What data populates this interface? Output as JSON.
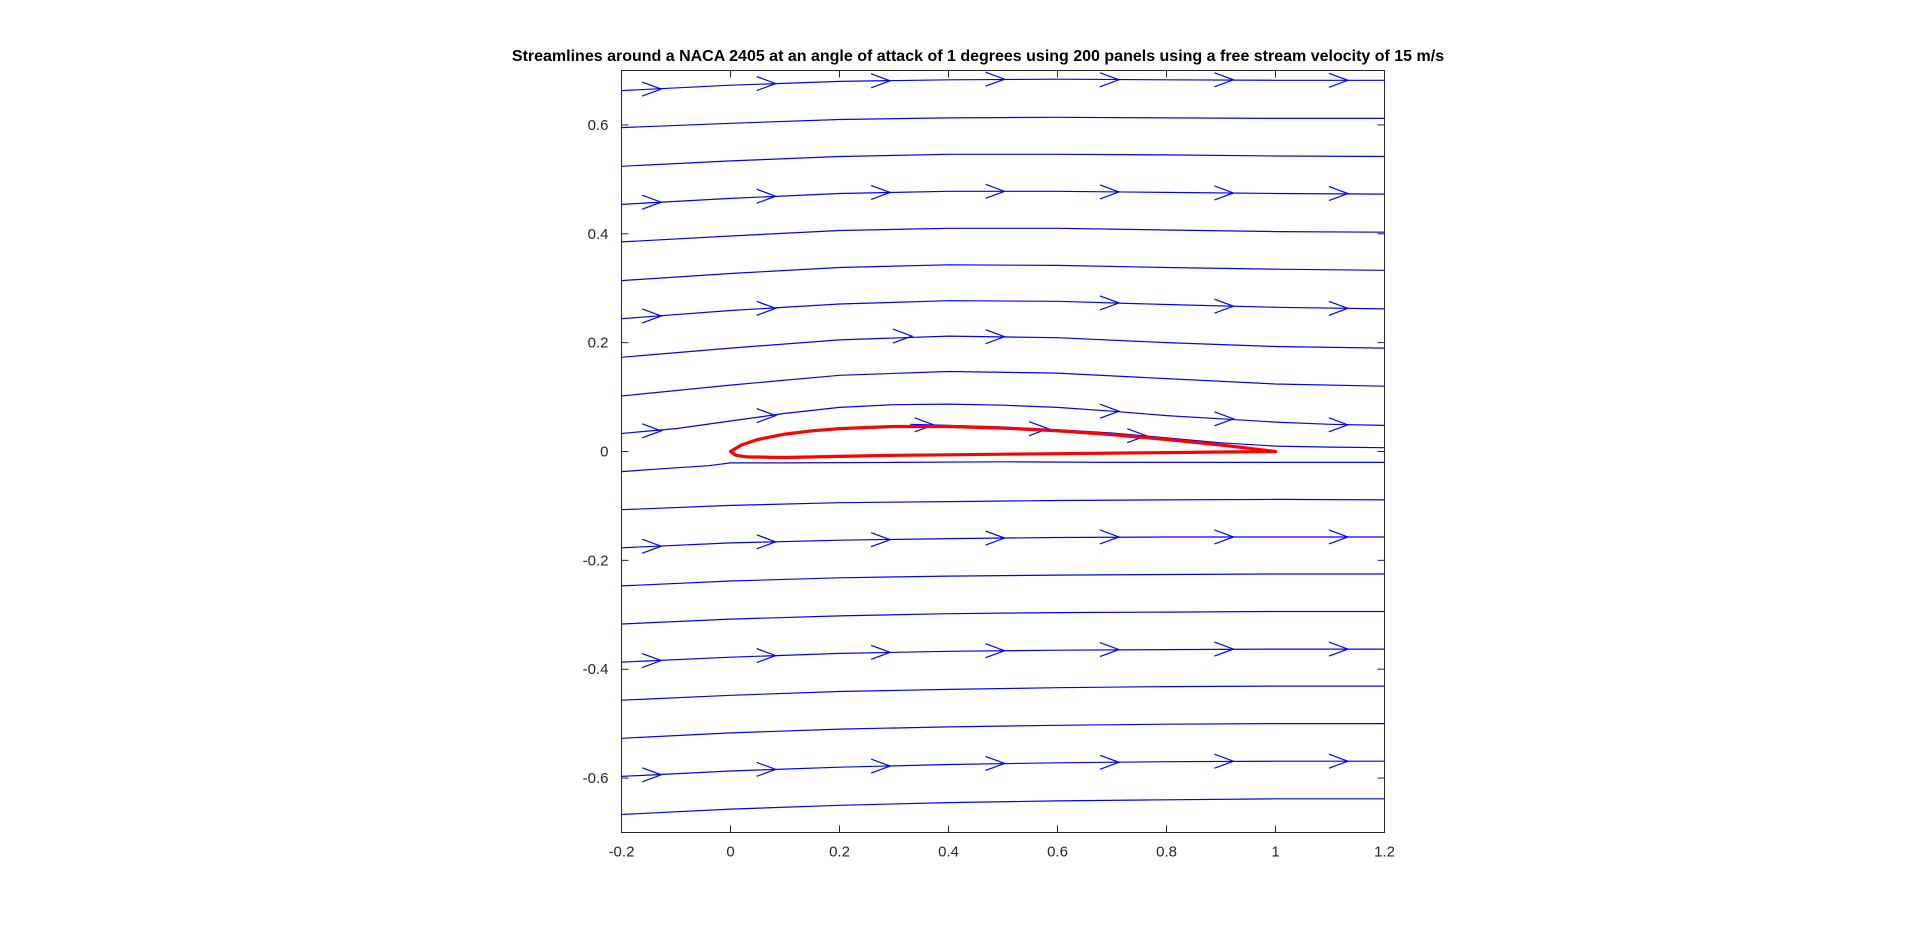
{
  "chart_data": {
    "type": "line",
    "title": "Streamlines around a NACA 2405 at an angle of attack of 1 degrees using 200 panels using a free stream velocity of 15 m/s",
    "xlabel": "",
    "ylabel": "",
    "xlim": [
      -0.2,
      1.2
    ],
    "ylim": [
      -0.7,
      0.7
    ],
    "x_ticks": [
      -0.2,
      0,
      0.2,
      0.4,
      0.6,
      0.8,
      1,
      1.2
    ],
    "y_ticks": [
      -0.6,
      -0.4,
      -0.2,
      0,
      0.2,
      0.4,
      0.6
    ],
    "x_tick_labels": [
      "-0.2",
      "0",
      "0.2",
      "0.4",
      "0.6",
      "0.8",
      "1",
      "1.2"
    ],
    "y_tick_labels": [
      "-0.6",
      "-0.4",
      "-0.2",
      "0",
      "0.2",
      "0.4",
      "0.6"
    ],
    "grid": false,
    "colors": {
      "streamline": "#0000ff",
      "airfoil": "#ff0000",
      "axes": "#262626"
    },
    "series": [
      {
        "kind": "streamline",
        "points": [
          [
            -0.2,
            0.663
          ],
          [
            0,
            0.673
          ],
          [
            0.2,
            0.68
          ],
          [
            0.4,
            0.683
          ],
          [
            0.6,
            0.684
          ],
          [
            0.8,
            0.683
          ],
          [
            1,
            0.682
          ],
          [
            1.2,
            0.682
          ]
        ]
      },
      {
        "kind": "streamline",
        "points": [
          [
            -0.2,
            0.595
          ],
          [
            0,
            0.603
          ],
          [
            0.2,
            0.61
          ],
          [
            0.4,
            0.613
          ],
          [
            0.6,
            0.614
          ],
          [
            0.8,
            0.613
          ],
          [
            1,
            0.612
          ],
          [
            1.2,
            0.612
          ]
        ]
      },
      {
        "kind": "streamline",
        "points": [
          [
            -0.2,
            0.524
          ],
          [
            0,
            0.534
          ],
          [
            0.2,
            0.542
          ],
          [
            0.4,
            0.546
          ],
          [
            0.6,
            0.546
          ],
          [
            0.8,
            0.545
          ],
          [
            1,
            0.543
          ],
          [
            1.2,
            0.542
          ]
        ]
      },
      {
        "kind": "streamline",
        "points": [
          [
            -0.2,
            0.454
          ],
          [
            0,
            0.465
          ],
          [
            0.2,
            0.474
          ],
          [
            0.4,
            0.478
          ],
          [
            0.6,
            0.478
          ],
          [
            0.8,
            0.476
          ],
          [
            1,
            0.474
          ],
          [
            1.2,
            0.473
          ]
        ]
      },
      {
        "kind": "streamline",
        "points": [
          [
            -0.2,
            0.385
          ],
          [
            0,
            0.396
          ],
          [
            0.2,
            0.406
          ],
          [
            0.4,
            0.41
          ],
          [
            0.6,
            0.41
          ],
          [
            0.8,
            0.407
          ],
          [
            1,
            0.404
          ],
          [
            1.2,
            0.403
          ]
        ]
      },
      {
        "kind": "streamline",
        "points": [
          [
            -0.2,
            0.314
          ],
          [
            0,
            0.327
          ],
          [
            0.2,
            0.338
          ],
          [
            0.4,
            0.343
          ],
          [
            0.6,
            0.342
          ],
          [
            0.8,
            0.338
          ],
          [
            1,
            0.335
          ],
          [
            1.2,
            0.333
          ]
        ]
      },
      {
        "kind": "streamline",
        "points": [
          [
            -0.2,
            0.244
          ],
          [
            0,
            0.259
          ],
          [
            0.2,
            0.271
          ],
          [
            0.4,
            0.277
          ],
          [
            0.6,
            0.276
          ],
          [
            0.8,
            0.27
          ],
          [
            1,
            0.265
          ],
          [
            1.2,
            0.262
          ]
        ]
      },
      {
        "kind": "streamline",
        "points": [
          [
            -0.2,
            0.173
          ],
          [
            0,
            0.19
          ],
          [
            0.2,
            0.205
          ],
          [
            0.4,
            0.212
          ],
          [
            0.6,
            0.209
          ],
          [
            0.8,
            0.2
          ],
          [
            1,
            0.193
          ],
          [
            1.2,
            0.19
          ]
        ]
      },
      {
        "kind": "streamline",
        "points": [
          [
            -0.2,
            0.102
          ],
          [
            0,
            0.122
          ],
          [
            0.2,
            0.14
          ],
          [
            0.4,
            0.147
          ],
          [
            0.6,
            0.144
          ],
          [
            0.8,
            0.134
          ],
          [
            1,
            0.124
          ],
          [
            1.2,
            0.12
          ]
        ]
      },
      {
        "kind": "streamline",
        "points": [
          [
            -0.2,
            0.033
          ],
          [
            -0.1,
            0.042
          ],
          [
            0,
            0.056
          ],
          [
            0.1,
            0.07
          ],
          [
            0.2,
            0.081
          ],
          [
            0.3,
            0.086
          ],
          [
            0.4,
            0.087
          ],
          [
            0.5,
            0.085
          ],
          [
            0.6,
            0.081
          ],
          [
            0.7,
            0.074
          ],
          [
            0.8,
            0.066
          ],
          [
            0.9,
            0.06
          ],
          [
            1,
            0.054
          ],
          [
            1.1,
            0.05
          ],
          [
            1.2,
            0.048
          ]
        ]
      },
      {
        "kind": "streamline",
        "points": [
          [
            0.33,
            0.05
          ],
          [
            0.4,
            0.048
          ],
          [
            0.5,
            0.045
          ],
          [
            0.6,
            0.04
          ],
          [
            0.7,
            0.034
          ],
          [
            0.8,
            0.025
          ],
          [
            0.9,
            0.016
          ],
          [
            1,
            0.01
          ],
          [
            1.1,
            0.008
          ],
          [
            1.2,
            0.007
          ]
        ]
      },
      {
        "kind": "streamline",
        "points": [
          [
            -0.2,
            -0.037
          ],
          [
            -0.1,
            -0.03
          ],
          [
            -0.04,
            -0.026
          ],
          [
            0,
            -0.021
          ],
          [
            0.1,
            -0.021
          ],
          [
            0.3,
            -0.02
          ],
          [
            0.5,
            -0.019
          ],
          [
            0.7,
            -0.02
          ],
          [
            0.9,
            -0.02
          ],
          [
            1.2,
            -0.02
          ]
        ]
      },
      {
        "kind": "streamline",
        "points": [
          [
            -0.2,
            -0.107
          ],
          [
            0,
            -0.099
          ],
          [
            0.2,
            -0.094
          ],
          [
            0.4,
            -0.092
          ],
          [
            0.6,
            -0.09
          ],
          [
            0.8,
            -0.089
          ],
          [
            1,
            -0.088
          ],
          [
            1.2,
            -0.089
          ]
        ]
      },
      {
        "kind": "streamline",
        "points": [
          [
            -0.2,
            -0.177
          ],
          [
            0,
            -0.168
          ],
          [
            0.2,
            -0.163
          ],
          [
            0.4,
            -0.16
          ],
          [
            0.6,
            -0.158
          ],
          [
            0.8,
            -0.157
          ],
          [
            1,
            -0.157
          ],
          [
            1.2,
            -0.157
          ]
        ]
      },
      {
        "kind": "streamline",
        "points": [
          [
            -0.2,
            -0.247
          ],
          [
            0,
            -0.238
          ],
          [
            0.2,
            -0.232
          ],
          [
            0.4,
            -0.229
          ],
          [
            0.6,
            -0.227
          ],
          [
            0.8,
            -0.226
          ],
          [
            1,
            -0.225
          ],
          [
            1.2,
            -0.225
          ]
        ]
      },
      {
        "kind": "streamline",
        "points": [
          [
            -0.2,
            -0.317
          ],
          [
            0,
            -0.308
          ],
          [
            0.2,
            -0.302
          ],
          [
            0.4,
            -0.298
          ],
          [
            0.6,
            -0.296
          ],
          [
            0.8,
            -0.295
          ],
          [
            1,
            -0.294
          ],
          [
            1.2,
            -0.294
          ]
        ]
      },
      {
        "kind": "streamline",
        "points": [
          [
            -0.2,
            -0.387
          ],
          [
            0,
            -0.378
          ],
          [
            0.2,
            -0.371
          ],
          [
            0.4,
            -0.367
          ],
          [
            0.6,
            -0.365
          ],
          [
            0.8,
            -0.364
          ],
          [
            1,
            -0.363
          ],
          [
            1.2,
            -0.363
          ]
        ]
      },
      {
        "kind": "streamline",
        "points": [
          [
            -0.2,
            -0.457
          ],
          [
            0,
            -0.448
          ],
          [
            0.2,
            -0.441
          ],
          [
            0.4,
            -0.437
          ],
          [
            0.6,
            -0.434
          ],
          [
            0.8,
            -0.432
          ],
          [
            1,
            -0.431
          ],
          [
            1.2,
            -0.431
          ]
        ]
      },
      {
        "kind": "streamline",
        "points": [
          [
            -0.2,
            -0.527
          ],
          [
            0,
            -0.517
          ],
          [
            0.2,
            -0.51
          ],
          [
            0.4,
            -0.506
          ],
          [
            0.6,
            -0.503
          ],
          [
            0.8,
            -0.501
          ],
          [
            1,
            -0.5
          ],
          [
            1.2,
            -0.5
          ]
        ]
      },
      {
        "kind": "streamline",
        "points": [
          [
            -0.2,
            -0.597
          ],
          [
            0,
            -0.587
          ],
          [
            0.2,
            -0.58
          ],
          [
            0.4,
            -0.575
          ],
          [
            0.6,
            -0.572
          ],
          [
            0.8,
            -0.57
          ],
          [
            1,
            -0.569
          ],
          [
            1.2,
            -0.569
          ]
        ]
      },
      {
        "kind": "streamline",
        "points": [
          [
            -0.2,
            -0.667
          ],
          [
            0,
            -0.657
          ],
          [
            0.2,
            -0.65
          ],
          [
            0.4,
            -0.645
          ],
          [
            0.6,
            -0.642
          ],
          [
            0.8,
            -0.64
          ],
          [
            1,
            -0.638
          ],
          [
            1.2,
            -0.638
          ]
        ]
      }
    ],
    "arrows": [
      [
        -0.14,
        0.666
      ],
      [
        0.07,
        0.676
      ],
      [
        0.28,
        0.681
      ],
      [
        0.49,
        0.684
      ],
      [
        0.7,
        0.683
      ],
      [
        0.91,
        0.683
      ],
      [
        1.12,
        0.682
      ],
      [
        -0.14,
        0.458
      ],
      [
        0.07,
        0.469
      ],
      [
        0.28,
        0.476
      ],
      [
        0.49,
        0.478
      ],
      [
        0.7,
        0.477
      ],
      [
        0.91,
        0.475
      ],
      [
        1.12,
        0.474
      ],
      [
        -0.14,
        0.249
      ],
      [
        0.07,
        0.263
      ],
      [
        0.7,
        0.273
      ],
      [
        0.91,
        0.267
      ],
      [
        1.12,
        0.263
      ],
      [
        0.32,
        0.212
      ],
      [
        0.49,
        0.211
      ],
      [
        -0.14,
        0.038
      ],
      [
        0.07,
        0.066
      ],
      [
        0.7,
        0.074
      ],
      [
        0.91,
        0.06
      ],
      [
        1.12,
        0.049
      ],
      [
        0.36,
        0.049
      ],
      [
        0.57,
        0.042
      ],
      [
        0.75,
        0.029
      ],
      [
        -0.14,
        -0.174
      ],
      [
        0.07,
        -0.166
      ],
      [
        0.28,
        -0.162
      ],
      [
        0.49,
        -0.159
      ],
      [
        0.7,
        -0.157
      ],
      [
        0.91,
        -0.157
      ],
      [
        1.12,
        -0.157
      ],
      [
        -0.14,
        -0.384
      ],
      [
        0.07,
        -0.375
      ],
      [
        0.28,
        -0.369
      ],
      [
        0.49,
        -0.366
      ],
      [
        0.7,
        -0.364
      ],
      [
        0.91,
        -0.363
      ],
      [
        1.12,
        -0.363
      ],
      [
        -0.14,
        -0.594
      ],
      [
        0.07,
        -0.584
      ],
      [
        0.28,
        -0.578
      ],
      [
        0.49,
        -0.573
      ],
      [
        0.7,
        -0.571
      ],
      [
        0.91,
        -0.569
      ],
      [
        1.12,
        -0.569
      ]
    ],
    "airfoil": {
      "name": "NACA 2405",
      "points": [
        [
          1,
          0
        ],
        [
          0.95,
          0.006
        ],
        [
          0.9,
          0.012
        ],
        [
          0.8,
          0.022
        ],
        [
          0.7,
          0.031
        ],
        [
          0.6,
          0.038
        ],
        [
          0.5,
          0.043
        ],
        [
          0.4,
          0.046
        ],
        [
          0.3,
          0.046
        ],
        [
          0.2,
          0.042
        ],
        [
          0.15,
          0.038
        ],
        [
          0.1,
          0.032
        ],
        [
          0.05,
          0.022
        ],
        [
          0.02,
          0.012
        ],
        [
          0,
          0
        ],
        [
          0.01,
          -0.007
        ],
        [
          0.03,
          -0.01
        ],
        [
          0.1,
          -0.011
        ],
        [
          0.2,
          -0.009
        ],
        [
          0.3,
          -0.007
        ],
        [
          0.4,
          -0.006
        ],
        [
          0.5,
          -0.005
        ],
        [
          0.6,
          -0.004
        ],
        [
          0.7,
          -0.003
        ],
        [
          0.8,
          -0.002
        ],
        [
          0.9,
          -0.001
        ],
        [
          1,
          0
        ]
      ]
    }
  }
}
